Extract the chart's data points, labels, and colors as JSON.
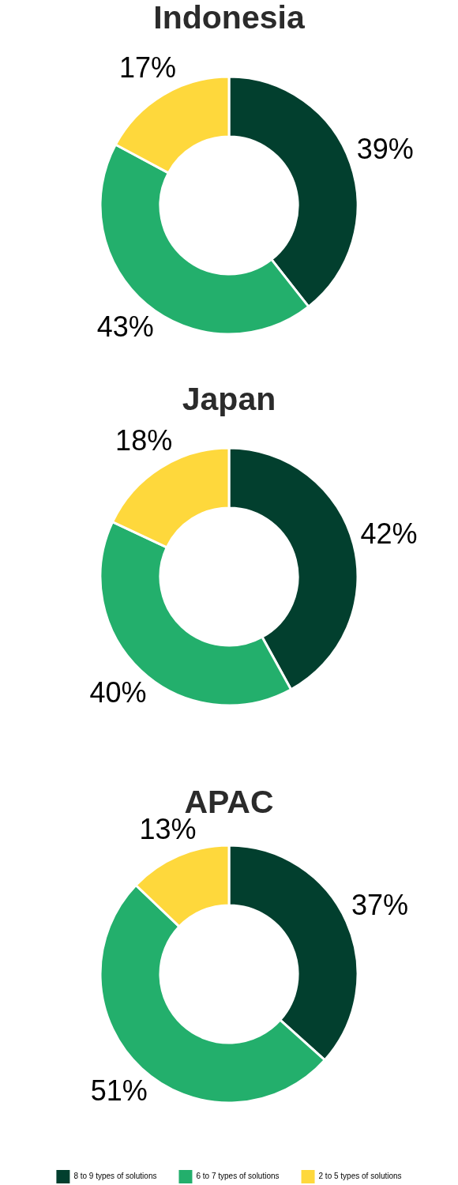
{
  "chart_data": [
    {
      "type": "donut",
      "title": "Indonesia",
      "categories": [
        null,
        null,
        null
      ],
      "values": [
        39,
        43,
        17
      ],
      "colors": [
        "#023f2e",
        "#23af6c",
        "#fed83c"
      ],
      "value_labels": [
        "39%",
        "43%",
        "17%"
      ]
    },
    {
      "type": "donut",
      "title": "Japan",
      "categories": [
        null,
        null,
        null
      ],
      "values": [
        42,
        40,
        18
      ],
      "colors": [
        "#023f2e",
        "#23af6c",
        "#fed83c"
      ],
      "value_labels": [
        "42%",
        "40%",
        "18%"
      ]
    },
    {
      "type": "donut",
      "title": "APAC",
      "categories": [
        "8 to 9 types of solutions",
        "6 to 7 types of solutions",
        "2 to 5 types of solutions"
      ],
      "values": [
        37,
        51,
        13
      ],
      "colors": [
        "#023f2e",
        "#23af6c",
        "#fed83c"
      ],
      "value_labels": [
        "37%",
        "51%",
        "13%"
      ],
      "legend": "bottom"
    }
  ]
}
